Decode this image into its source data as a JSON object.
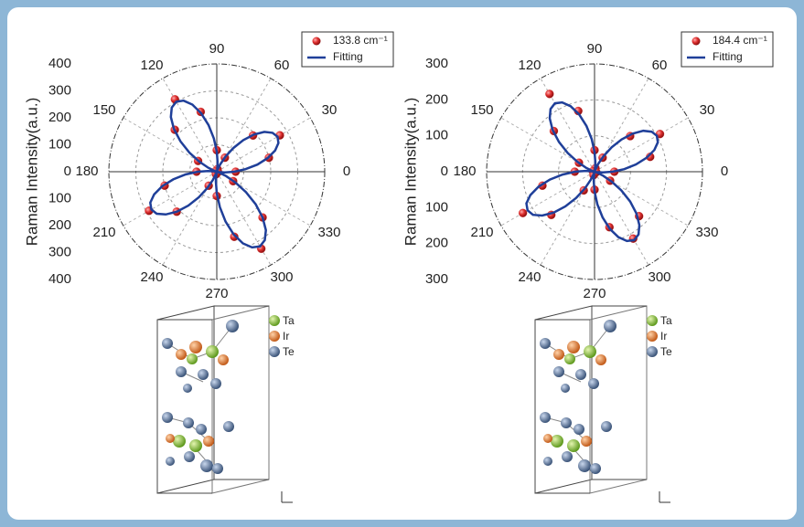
{
  "chart_data": [
    {
      "type": "polar",
      "ylabel": "Raman Intensity(a.u.)",
      "rlim": [
        0,
        400
      ],
      "rticks": [
        0,
        100,
        200,
        300,
        400
      ],
      "theta_ticks": [
        0,
        30,
        60,
        90,
        120,
        150,
        180,
        210,
        240,
        270,
        300,
        330
      ],
      "series": [
        {
          "name": "133.8 cm⁻¹",
          "color": "#d42a2a",
          "mode": "markers",
          "x": [
            0,
            15,
            30,
            45,
            60,
            75,
            90,
            105,
            120,
            135,
            150,
            165,
            180,
            195,
            210,
            225,
            240,
            255,
            270,
            285,
            300,
            315,
            330,
            345
          ],
          "values": [
            70,
            200,
            270,
            190,
            60,
            10,
            80,
            230,
            310,
            220,
            80,
            5,
            75,
            200,
            290,
            210,
            60,
            10,
            90,
            250,
            330,
            240,
            70,
            5
          ]
        },
        {
          "name": "Fitting",
          "color": "#1f3f99",
          "mode": "line",
          "x": [
            0,
            5,
            10,
            15,
            20,
            25,
            30,
            35,
            40,
            45,
            50,
            55,
            60,
            65,
            70,
            75,
            80,
            85,
            90,
            95,
            100,
            105,
            110,
            115,
            120,
            125,
            130,
            135,
            140,
            145,
            150,
            155,
            160,
            165,
            170,
            175,
            180,
            185,
            190,
            195,
            200,
            205,
            210,
            215,
            220,
            225,
            230,
            235,
            240,
            245,
            250,
            255,
            260,
            265,
            270,
            275,
            280,
            285,
            290,
            295,
            300,
            305,
            310,
            315,
            320,
            325,
            330,
            335,
            340,
            345,
            350,
            355
          ],
          "values": [
            65,
            107,
            153,
            195,
            230,
            252,
            260,
            252,
            230,
            195,
            153,
            107,
            65,
            30,
            8,
            0,
            9,
            35,
            75,
            124,
            176,
            225,
            265,
            291,
            300,
            291,
            265,
            225,
            176,
            124,
            75,
            35,
            9,
            0,
            8,
            33,
            70,
            116,
            164,
            210,
            247,
            272,
            280,
            272,
            247,
            210,
            164,
            116,
            70,
            33,
            8,
            0,
            10,
            37,
            80,
            132,
            188,
            240,
            283,
            310,
            320,
            310,
            283,
            240,
            188,
            132,
            80,
            37,
            10,
            0,
            8,
            30
          ]
        }
      ]
    },
    {
      "type": "polar",
      "ylabel": "Raman Intensity(a.u.)",
      "rlim": [
        0,
        300
      ],
      "rticks": [
        0,
        100,
        200,
        300
      ],
      "theta_ticks": [
        0,
        30,
        60,
        90,
        120,
        150,
        180,
        210,
        240,
        270,
        300,
        330
      ],
      "series": [
        {
          "name": "184.4 cm⁻¹",
          "color": "#d42a2a",
          "mode": "markers",
          "x": [
            0,
            15,
            30,
            45,
            60,
            75,
            90,
            105,
            120,
            135,
            150,
            165,
            180,
            195,
            210,
            225,
            240,
            255,
            270,
            285,
            300,
            315,
            330,
            345
          ],
          "values": [
            55,
            160,
            210,
            140,
            45,
            10,
            60,
            175,
            250,
            160,
            50,
            5,
            55,
            150,
            230,
            170,
            60,
            10,
            50,
            160,
            215,
            175,
            50,
            5
          ]
        },
        {
          "name": "Fitting",
          "color": "#1f3f99",
          "mode": "line",
          "x": [
            0,
            5,
            10,
            15,
            20,
            25,
            30,
            35,
            40,
            45,
            50,
            55,
            60,
            65,
            70,
            75,
            80,
            85,
            90,
            95,
            100,
            105,
            110,
            115,
            120,
            125,
            130,
            135,
            140,
            145,
            150,
            155,
            160,
            165,
            170,
            175,
            180,
            185,
            190,
            195,
            200,
            205,
            210,
            215,
            220,
            225,
            230,
            235,
            240,
            245,
            250,
            255,
            260,
            265,
            270,
            275,
            280,
            285,
            290,
            295,
            300,
            305,
            310,
            315,
            320,
            325,
            330,
            335,
            340,
            345,
            350,
            355
          ],
          "values": [
            50,
            83,
            117,
            150,
            177,
            194,
            200,
            194,
            177,
            150,
            117,
            83,
            50,
            23,
            6,
            0,
            7,
            26,
            55,
            91,
            129,
            165,
            194,
            213,
            220,
            213,
            194,
            165,
            129,
            91,
            55,
            26,
            7,
            0,
            6,
            25,
            54,
            89,
            126,
            161,
            190,
            209,
            215,
            209,
            190,
            161,
            126,
            89,
            54,
            25,
            6,
            0,
            7,
            26,
            55,
            91,
            129,
            165,
            194,
            213,
            220,
            213,
            194,
            165,
            129,
            91,
            55,
            26,
            7,
            0,
            6,
            23
          ]
        }
      ]
    }
  ],
  "structure_legend": [
    "Ta",
    "Ir",
    "Te"
  ]
}
